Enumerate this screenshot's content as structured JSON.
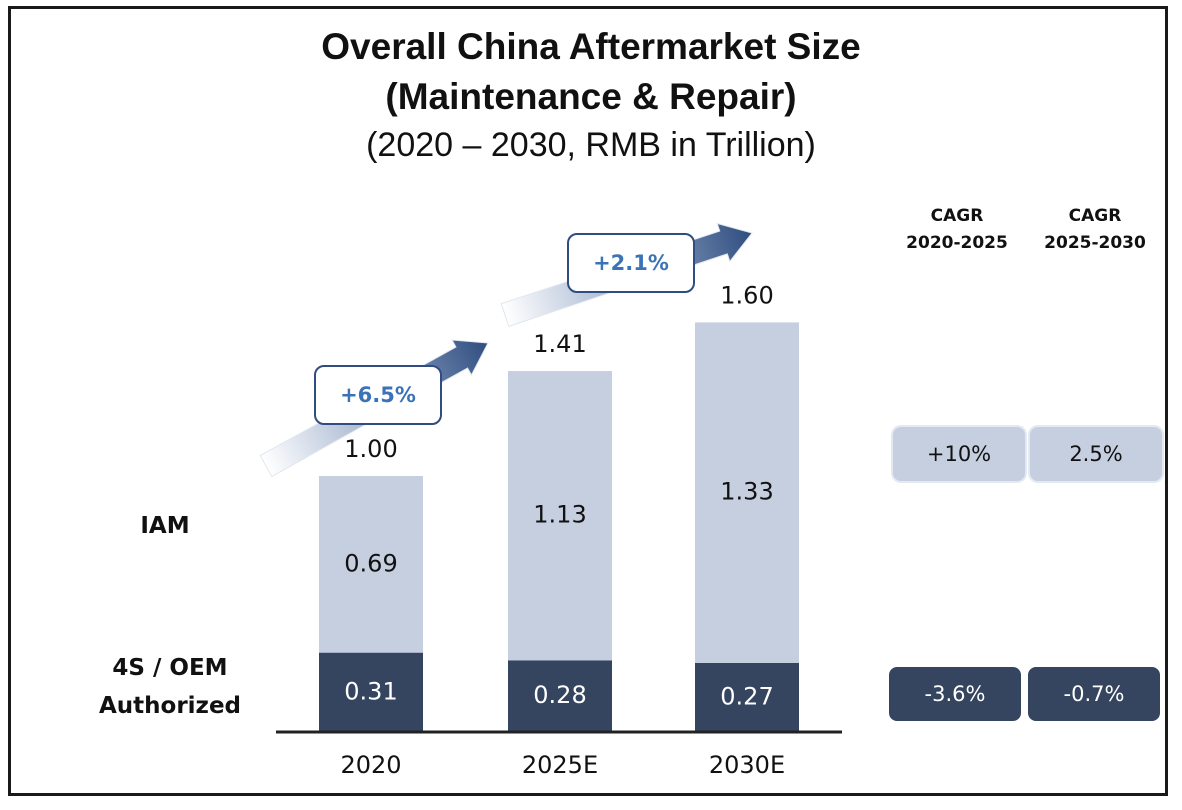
{
  "title": {
    "line1": "Overall China Aftermarket Size",
    "line2": "(Maintenance & Repair)",
    "line3": "(2020 – 2030, RMB in Trillion)"
  },
  "row_labels": {
    "iam": "IAM",
    "oem_line1": "4S / OEM",
    "oem_line2": "Authorized"
  },
  "cagr": {
    "header1": {
      "line1": "CAGR",
      "line2": "2020-2025"
    },
    "header2": {
      "line1": "CAGR",
      "line2": "2025-2030"
    },
    "iam": [
      "+10%",
      "2.5%"
    ],
    "oem": [
      "-3.6%",
      "-0.7%"
    ]
  },
  "colors": {
    "iam": "#c6cfe0",
    "oem": "#354560",
    "arrow": "#2f4d80",
    "callout_text": "#3a73b8"
  },
  "chart_data": {
    "type": "bar",
    "stacked": true,
    "categories": [
      "2020",
      "2025E",
      "2030E"
    ],
    "series": [
      {
        "name": "4S / OEM Authorized",
        "values": [
          0.31,
          0.28,
          0.27
        ],
        "labels": [
          "0.31",
          "0.28",
          "0.27"
        ]
      },
      {
        "name": "IAM",
        "values": [
          0.69,
          1.13,
          1.33
        ],
        "labels": [
          "0.69",
          "1.13",
          "1.33"
        ]
      }
    ],
    "totals": [
      1.0,
      1.41,
      1.6
    ],
    "total_labels": [
      "1.00",
      "1.41",
      "1.60"
    ],
    "growth": [
      "+6.5%",
      "+2.1%"
    ],
    "ylim": [
      0,
      1.6
    ]
  }
}
